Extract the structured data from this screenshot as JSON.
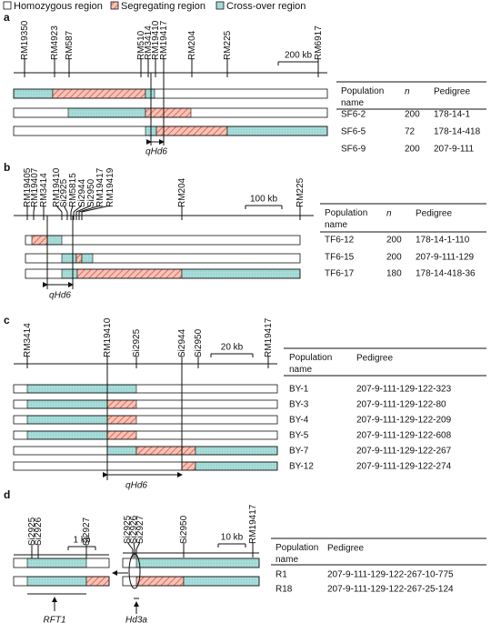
{
  "legend": [
    "Homozygous region",
    "Segregating region",
    "Cross-over region"
  ],
  "panels": [
    {
      "label": "a",
      "maps": [
        {
          "markers": [
            "RM19350",
            "RM4923",
            "RM587",
            "RM510",
            "RM3414",
            "RM19410",
            "RM19417",
            "RM204",
            "RM225",
            "RM6917"
          ],
          "scale": "200 kb"
        }
      ],
      "qtl": "qHd6",
      "table": {
        "header": [
          "Population name",
          "n",
          "Pedigree"
        ],
        "rows": [
          [
            "SF6-2",
            200,
            "178-14-1"
          ],
          [
            "SF6-5",
            72,
            "178-14-418"
          ],
          [
            "SF6-9",
            200,
            "207-9-111"
          ]
        ]
      }
    },
    {
      "label": "b",
      "maps": [
        {
          "markers": [
            "RM19405",
            "RM19407",
            "RM3414",
            "RM19410",
            "Si2925",
            "RM5815",
            "Si2944",
            "Si2950",
            "RM19417",
            "RM19419",
            "RM204",
            "RM225"
          ],
          "scale": "100 kb"
        }
      ],
      "qtl": "qHd6",
      "table": {
        "header": [
          "Population name",
          "n",
          "Pedigree"
        ],
        "rows": [
          [
            "TF6-12",
            200,
            "178-14-1-110"
          ],
          [
            "TF6-15",
            200,
            "207-9-111-129"
          ],
          [
            "TF6-17",
            180,
            "178-14-418-36"
          ]
        ]
      }
    },
    {
      "label": "c",
      "maps": [
        {
          "markers": [
            "RM3414",
            "RM19410",
            "Si2925",
            "Si2944",
            "Si2950",
            "RM19417"
          ],
          "scale": "20 kb"
        }
      ],
      "qtl": "qHd6",
      "table": {
        "header": [
          "Population name",
          "Pedigree"
        ],
        "rows": [
          [
            "BY-1",
            "207-9-111-129-122-323"
          ],
          [
            "BY-3",
            "207-9-111-129-122-80"
          ],
          [
            "BY-4",
            "207-9-111-129-122-209"
          ],
          [
            "BY-5",
            "207-9-111-129-122-608"
          ],
          [
            "BY-7",
            "207-9-111-129-122-267"
          ],
          [
            "BY-12",
            "207-9-111-129-122-274"
          ]
        ]
      }
    },
    {
      "label": "d",
      "maps": [
        {
          "markers": [
            "Si2925",
            "Si2926",
            "Si2927"
          ],
          "scale": "1 kb",
          "gene": "RFT1"
        },
        {
          "markers": [
            "Si2925",
            "Si2926",
            "Si2927",
            "Si2950",
            "RM19417"
          ],
          "scale": "10 kb",
          "gene": "Hd3a"
        }
      ],
      "table": {
        "header": [
          "Population name",
          "Pedigree"
        ],
        "rows": [
          [
            "R1",
            "207-9-111-129-122-267-10-775"
          ],
          [
            "R18",
            "207-9-111-129-122-267-25-124"
          ]
        ]
      }
    }
  ]
}
